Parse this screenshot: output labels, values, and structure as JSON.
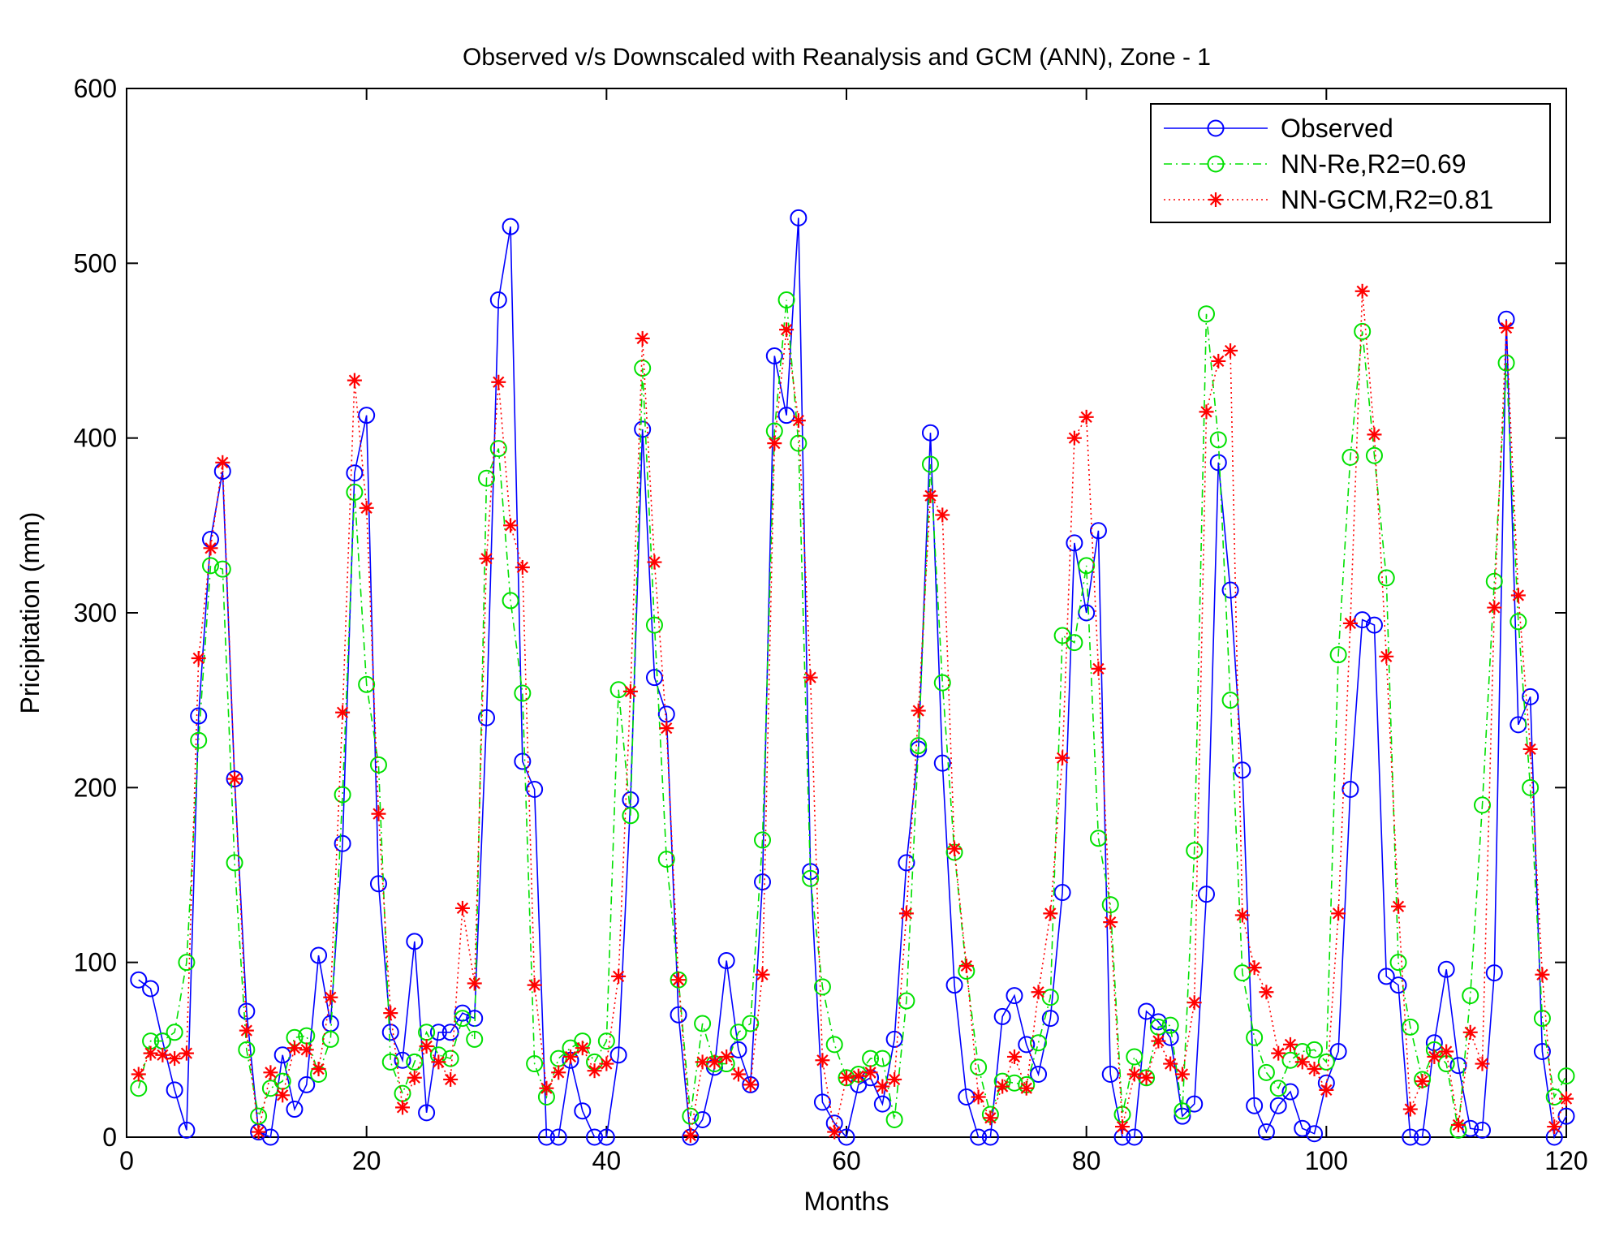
{
  "chart_data": {
    "type": "line",
    "title": "Observed v/s Downscaled with Reanalysis and GCM (ANN), Zone - 1",
    "xlabel": "Months",
    "ylabel": "Pricipitation (mm)",
    "xlim": [
      0,
      120
    ],
    "ylim": [
      0,
      600
    ],
    "xticks": [
      0,
      20,
      40,
      60,
      80,
      100,
      120
    ],
    "yticks": [
      0,
      100,
      200,
      300,
      400,
      500,
      600
    ],
    "grid": false,
    "legend_position": "top-right",
    "x": [
      1,
      2,
      3,
      4,
      5,
      6,
      7,
      8,
      9,
      10,
      11,
      12,
      13,
      14,
      15,
      16,
      17,
      18,
      19,
      20,
      21,
      22,
      23,
      24,
      25,
      26,
      27,
      28,
      29,
      30,
      31,
      32,
      33,
      34,
      35,
      36,
      37,
      38,
      39,
      40,
      41,
      42,
      43,
      44,
      45,
      46,
      47,
      48,
      49,
      50,
      51,
      52,
      53,
      54,
      55,
      56,
      57,
      58,
      59,
      60,
      61,
      62,
      63,
      64,
      65,
      66,
      67,
      68,
      69,
      70,
      71,
      72,
      73,
      74,
      75,
      76,
      77,
      78,
      79,
      80,
      81,
      82,
      83,
      84,
      85,
      86,
      87,
      88,
      89,
      90,
      91,
      92,
      93,
      94,
      95,
      96,
      97,
      98,
      99,
      100,
      101,
      102,
      103,
      104,
      105,
      106,
      107,
      108,
      109,
      110,
      111,
      112,
      113,
      114,
      115,
      116,
      117,
      118,
      119,
      120
    ],
    "series": [
      {
        "name": "Observed",
        "color": "#0000ff",
        "line": "solid",
        "marker": "circle",
        "values": [
          90,
          85,
          55,
          27,
          4,
          241,
          342,
          381,
          205,
          72,
          3,
          0,
          47,
          16,
          30,
          104,
          65,
          168,
          380,
          413,
          145,
          60,
          44,
          112,
          14,
          60,
          60,
          71,
          68,
          240,
          479,
          521,
          215,
          199,
          0,
          0,
          44,
          15,
          0,
          0,
          47,
          193,
          405,
          263,
          242,
          70,
          0,
          10,
          40,
          101,
          50,
          30,
          146,
          447,
          413,
          526,
          152,
          20,
          8,
          0,
          30,
          34,
          19,
          56,
          157,
          222,
          403,
          214,
          87,
          23,
          0,
          0,
          69,
          81,
          53,
          36,
          68,
          140,
          340,
          300,
          347,
          36,
          0,
          0,
          72,
          66,
          57,
          12,
          19,
          139,
          386,
          313,
          210,
          18,
          3,
          18,
          26,
          5,
          2,
          31,
          49,
          199,
          296,
          293,
          92,
          87,
          0,
          0,
          54,
          96,
          41,
          5,
          4,
          94,
          468,
          236,
          252,
          49,
          0,
          12
        ]
      },
      {
        "name": "NN-Re,R2=0.69",
        "color": "#00e000",
        "line": "dashdot",
        "marker": "circle",
        "values": [
          28,
          55,
          55,
          60,
          100,
          227,
          327,
          325,
          157,
          50,
          12,
          28,
          32,
          57,
          58,
          36,
          56,
          196,
          369,
          259,
          213,
          43,
          25,
          43,
          60,
          47,
          45,
          68,
          56,
          377,
          394,
          307,
          254,
          42,
          23,
          45,
          51,
          55,
          43,
          55,
          256,
          184,
          440,
          293,
          159,
          90,
          12,
          65,
          42,
          42,
          60,
          65,
          170,
          404,
          479,
          397,
          148,
          86,
          53,
          34,
          36,
          45,
          45,
          10,
          78,
          224,
          385,
          260,
          163,
          95,
          40,
          13,
          32,
          31,
          30,
          54,
          80,
          287,
          283,
          327,
          171,
          133,
          13,
          46,
          34,
          63,
          64,
          15,
          164,
          471,
          399,
          250,
          94,
          57,
          37,
          28,
          44,
          49,
          50,
          43,
          276,
          389,
          461,
          390,
          320,
          100,
          63,
          33,
          50,
          42,
          4,
          81,
          190,
          318,
          443,
          295,
          200,
          68,
          23,
          35
        ]
      },
      {
        "name": "NN-GCM,R2=0.81",
        "color": "#ff0000",
        "line": "dotted",
        "marker": "star",
        "values": [
          36,
          48,
          47,
          45,
          48,
          274,
          337,
          386,
          205,
          61,
          3,
          37,
          24,
          51,
          50,
          39,
          80,
          243,
          433,
          360,
          185,
          71,
          17,
          34,
          52,
          43,
          33,
          131,
          88,
          331,
          432,
          350,
          326,
          87,
          28,
          37,
          46,
          51,
          38,
          42,
          92,
          255,
          457,
          329,
          234,
          90,
          1,
          43,
          43,
          46,
          36,
          30,
          93,
          397,
          462,
          410,
          263,
          44,
          3,
          34,
          35,
          37,
          29,
          33,
          128,
          244,
          367,
          356,
          165,
          98,
          23,
          11,
          29,
          46,
          28,
          83,
          128,
          217,
          400,
          412,
          268,
          123,
          6,
          36,
          34,
          55,
          42,
          36,
          77,
          415,
          444,
          450,
          127,
          97,
          83,
          48,
          53,
          43,
          39,
          27,
          128,
          294,
          484,
          402,
          275,
          132,
          16,
          32,
          46,
          49,
          7,
          60,
          42,
          303,
          463,
          310,
          222,
          93,
          6,
          22
        ]
      }
    ]
  }
}
